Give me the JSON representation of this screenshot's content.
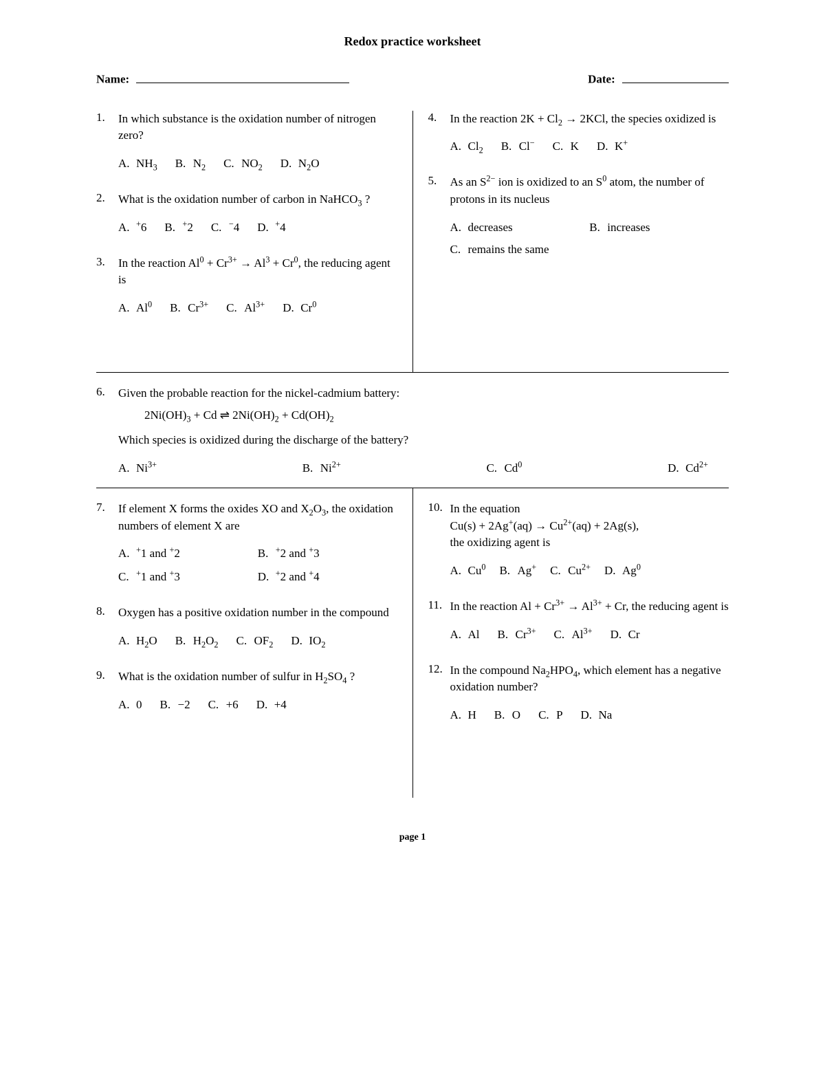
{
  "title": "Redox practice worksheet",
  "name_label": "Name:",
  "date_label": "Date:",
  "footer": "page 1",
  "letters": [
    "A.",
    "B.",
    "C.",
    "D."
  ],
  "q1": {
    "num": "1.",
    "stem": "In which substance is the oxidation number of nitrogen zero?",
    "a": "NH<sub>3</sub>",
    "b": "N<sub>2</sub>",
    "c": "NO<sub>2</sub>",
    "d": "N<sub>2</sub>O"
  },
  "q2": {
    "num": "2.",
    "stem": "What is the oxidation number of carbon in NaHCO<sub>3</sub> ?",
    "a": "<sup>+</sup>6",
    "b": "<sup>+</sup>2",
    "c": "<sup>−</sup>4",
    "d": "<sup>+</sup>4"
  },
  "q3": {
    "num": "3.",
    "stem": "In the reaction Al<sup>0</sup> + Cr<sup>3+</sup> → Al<sup>3</sup> + Cr<sup>0</sup>, the reducing agent is",
    "a": "Al<sup>0</sup>",
    "b": "Cr<sup>3+</sup>",
    "c": "Al<sup>3+</sup>",
    "d": "Cr<sup>0</sup>"
  },
  "q4": {
    "num": "4.",
    "stem": "In the reaction 2K + Cl<sub>2</sub> → 2KCl, the species oxidized is",
    "a": "Cl<sub>2</sub>",
    "b": "Cl<sup>−</sup>",
    "c": "K",
    "d": "K<sup>+</sup>"
  },
  "q5": {
    "num": "5.",
    "stem": "As an S<sup>2−</sup> ion is oxidized to an S<sup>0</sup> atom, the number of protons in its nucleus",
    "a": "decreases",
    "b": "increases",
    "c": "remains the same"
  },
  "q6": {
    "num": "6.",
    "stem": "Given the probable reaction for the nickel-cadmium battery:",
    "eqn": "2Ni(OH)<sub>3</sub> + Cd ⇌ 2Ni(OH)<sub>2</sub> + Cd(OH)<sub>2</sub>",
    "follow": "Which species is oxidized during the discharge of the battery?",
    "a": "Ni<sup>3+</sup>",
    "b": "Ni<sup>2+</sup>",
    "c": "Cd<sup>0</sup>",
    "d": "Cd<sup>2+</sup>"
  },
  "q7": {
    "num": "7.",
    "stem": "If element X forms the oxides XO and X<sub>2</sub>O<sub>3</sub>, the oxidation numbers of element X are",
    "a": "<sup>+</sup>1 and <sup>+</sup>2",
    "b": "<sup>+</sup>2 and <sup>+</sup>3",
    "c": "<sup>+</sup>1 and <sup>+</sup>3",
    "d": "<sup>+</sup>2 and <sup>+</sup>4"
  },
  "q8": {
    "num": "8.",
    "stem": "Oxygen has a positive oxidation number in the compound",
    "a": "H<sub>2</sub>O",
    "b": "H<sub>2</sub>O<sub>2</sub>",
    "c": "OF<sub>2</sub>",
    "d": "IO<sub>2</sub>"
  },
  "q9": {
    "num": "9.",
    "stem": "What is the oxidation number of sulfur in H<sub>2</sub>SO<sub>4</sub> ?",
    "a": "0",
    "b": "−2",
    "c": "+6",
    "d": "+4"
  },
  "q10": {
    "num": "10.",
    "stem": "In the equation<br>Cu(s) + 2Ag<sup>+</sup>(aq) → Cu<sup>2+</sup>(aq) + 2Ag(s),<br>the oxidizing agent is",
    "a": "Cu<sup>0</sup>",
    "b": "Ag<sup>+</sup>",
    "c": "Cu<sup>2+</sup>",
    "d": "Ag<sup>0</sup>"
  },
  "q11": {
    "num": "11.",
    "stem": "In the reaction Al + Cr<sup>3+</sup> → Al<sup>3+</sup> + Cr, the reducing agent is",
    "a": "Al",
    "b": "Cr<sup>3+</sup>",
    "c": "Al<sup>3+</sup>",
    "d": "Cr"
  },
  "q12": {
    "num": "12.",
    "stem": "In the compound Na<sub>2</sub>HPO<sub>4</sub>, which element has a negative oxidation number?",
    "a": "H",
    "b": "O",
    "c": "P",
    "d": "Na"
  }
}
